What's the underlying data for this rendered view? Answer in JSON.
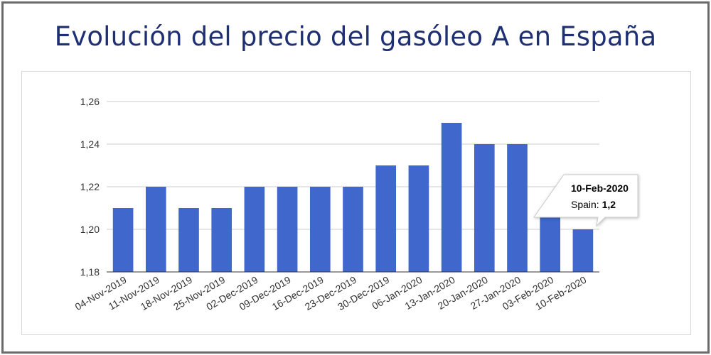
{
  "chart_data": {
    "type": "bar",
    "title": "Evolución del precio del gasóleo A en España",
    "categories": [
      "04-Nov-2019",
      "11-Nov-2019",
      "18-Nov-2019",
      "25-Nov-2019",
      "02-Dec-2019",
      "09-Dec-2019",
      "16-Dec-2019",
      "23-Dec-2019",
      "30-Dec-2019",
      "06-Jan-2020",
      "13-Jan-2020",
      "20-Jan-2020",
      "27-Jan-2020",
      "03-Feb-2020",
      "10-Feb-2020"
    ],
    "series": [
      {
        "name": "Spain",
        "values": [
          1.21,
          1.22,
          1.21,
          1.21,
          1.22,
          1.22,
          1.22,
          1.22,
          1.23,
          1.23,
          1.25,
          1.24,
          1.24,
          1.21,
          1.2
        ]
      }
    ],
    "ylim": [
      1.18,
      1.26
    ],
    "yticks": [
      "1,18",
      "1,20",
      "1,22",
      "1,24",
      "1,26"
    ],
    "grid": true,
    "bar_color": "#3f67cc",
    "tooltip": {
      "title": "10-Feb-2020",
      "label": "Spain: ",
      "value": "1,2"
    }
  }
}
